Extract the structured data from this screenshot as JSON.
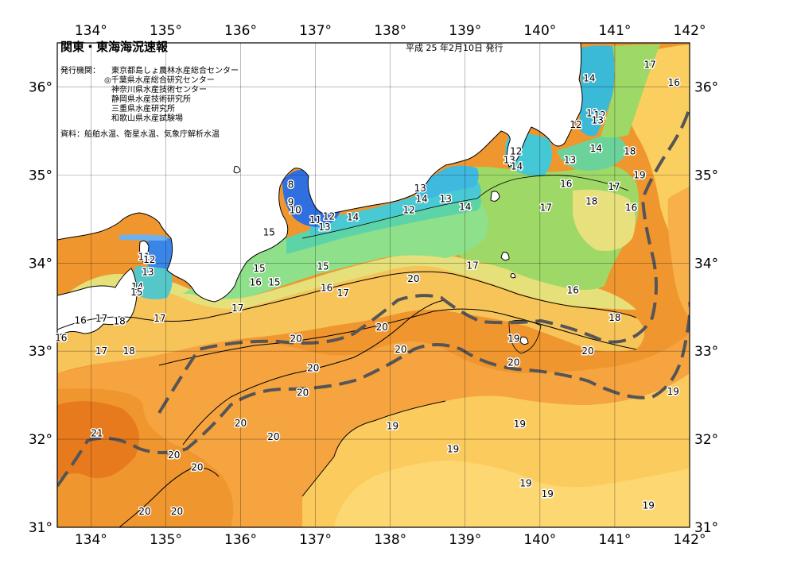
{
  "title": "関東・東海海況速報",
  "issue_date": "平成 25 年2月10日 発行",
  "agencies_label": "発行機関：",
  "agencies": [
    "東京都島しょ農林水産総合センター",
    "◎千葉県水産総合研究センター",
    "神奈川県水産技術センター",
    "静岡県水産技術研究所",
    "三重県水産研究所",
    "和歌山県水産試験場"
  ],
  "sources": "資料：船舶水温、衛星水温、気象庁解析水温",
  "lon_ticks": [
    "134°",
    "135°",
    "136°",
    "137°",
    "138°",
    "139°",
    "140°",
    "141°",
    "142°"
  ],
  "lat_ticks": [
    "36°",
    "35°",
    "34°",
    "33°",
    "32°",
    "31°"
  ],
  "temperature_labels": [
    {
      "text": "17",
      "lon": 141.47,
      "lat": 36.25
    },
    {
      "text": "16",
      "lon": 141.79,
      "lat": 36.05
    },
    {
      "text": "14",
      "lon": 140.66,
      "lat": 36.1
    },
    {
      "text": "11",
      "lon": 140.7,
      "lat": 35.7
    },
    {
      "text": "12",
      "lon": 140.8,
      "lat": 35.68
    },
    {
      "text": "13",
      "lon": 140.77,
      "lat": 35.62
    },
    {
      "text": "12",
      "lon": 140.48,
      "lat": 35.57
    },
    {
      "text": "14",
      "lon": 140.75,
      "lat": 35.3
    },
    {
      "text": "18",
      "lon": 141.2,
      "lat": 35.27
    },
    {
      "text": "13",
      "lon": 140.4,
      "lat": 35.17
    },
    {
      "text": "12",
      "lon": 139.68,
      "lat": 35.27
    },
    {
      "text": "13",
      "lon": 139.59,
      "lat": 35.17
    },
    {
      "text": "14",
      "lon": 139.69,
      "lat": 35.1
    },
    {
      "text": "19",
      "lon": 141.33,
      "lat": 35.0
    },
    {
      "text": "16",
      "lon": 140.35,
      "lat": 34.9
    },
    {
      "text": "17",
      "lon": 140.99,
      "lat": 34.87
    },
    {
      "text": "18",
      "lon": 140.69,
      "lat": 34.7
    },
    {
      "text": "16",
      "lon": 141.22,
      "lat": 34.63
    },
    {
      "text": "17",
      "lon": 140.08,
      "lat": 34.63
    },
    {
      "text": "13",
      "lon": 138.4,
      "lat": 34.85
    },
    {
      "text": "14",
      "lon": 138.42,
      "lat": 34.73
    },
    {
      "text": "13",
      "lon": 138.74,
      "lat": 34.73
    },
    {
      "text": "14",
      "lon": 139.0,
      "lat": 34.64
    },
    {
      "text": "12",
      "lon": 138.25,
      "lat": 34.6
    },
    {
      "text": "8",
      "lon": 136.67,
      "lat": 34.89
    },
    {
      "text": "9",
      "lon": 136.67,
      "lat": 34.69
    },
    {
      "text": "10",
      "lon": 136.73,
      "lat": 34.6
    },
    {
      "text": "11",
      "lon": 137.0,
      "lat": 34.49
    },
    {
      "text": "12",
      "lon": 137.18,
      "lat": 34.53
    },
    {
      "text": "13",
      "lon": 137.12,
      "lat": 34.41
    },
    {
      "text": "14",
      "lon": 137.5,
      "lat": 34.52
    },
    {
      "text": "15",
      "lon": 136.38,
      "lat": 34.35
    },
    {
      "text": "11",
      "lon": 134.71,
      "lat": 34.07
    },
    {
      "text": "12",
      "lon": 134.78,
      "lat": 34.04
    },
    {
      "text": "13",
      "lon": 134.76,
      "lat": 33.9
    },
    {
      "text": "14",
      "lon": 134.62,
      "lat": 33.73
    },
    {
      "text": "15",
      "lon": 134.61,
      "lat": 33.67
    },
    {
      "text": "15",
      "lon": 136.25,
      "lat": 33.94
    },
    {
      "text": "16",
      "lon": 136.2,
      "lat": 33.78
    },
    {
      "text": "15",
      "lon": 136.45,
      "lat": 33.78
    },
    {
      "text": "15",
      "lon": 137.1,
      "lat": 33.96
    },
    {
      "text": "16",
      "lon": 137.15,
      "lat": 33.72
    },
    {
      "text": "17",
      "lon": 137.37,
      "lat": 33.66
    },
    {
      "text": "17",
      "lon": 139.1,
      "lat": 33.97
    },
    {
      "text": "20",
      "lon": 138.31,
      "lat": 33.82
    },
    {
      "text": "16",
      "lon": 140.44,
      "lat": 33.69
    },
    {
      "text": "17",
      "lon": 135.96,
      "lat": 33.49
    },
    {
      "text": "16",
      "lon": 133.86,
      "lat": 33.35
    },
    {
      "text": "17",
      "lon": 134.14,
      "lat": 33.37
    },
    {
      "text": "18",
      "lon": 134.38,
      "lat": 33.34
    },
    {
      "text": "17",
      "lon": 134.92,
      "lat": 33.37
    },
    {
      "text": "16",
      "lon": 133.6,
      "lat": 33.15
    },
    {
      "text": "20",
      "lon": 137.89,
      "lat": 33.27
    },
    {
      "text": "18",
      "lon": 141.0,
      "lat": 33.38
    },
    {
      "text": "17",
      "lon": 134.14,
      "lat": 33.0
    },
    {
      "text": "18",
      "lon": 134.51,
      "lat": 33.0
    },
    {
      "text": "20",
      "lon": 136.74,
      "lat": 33.14
    },
    {
      "text": "19",
      "lon": 139.65,
      "lat": 33.14
    },
    {
      "text": "20",
      "lon": 138.14,
      "lat": 33.02
    },
    {
      "text": "20",
      "lon": 140.64,
      "lat": 33.0
    },
    {
      "text": "20",
      "lon": 136.97,
      "lat": 32.81
    },
    {
      "text": "20",
      "lon": 139.65,
      "lat": 32.87
    },
    {
      "text": "20",
      "lon": 136.83,
      "lat": 32.53
    },
    {
      "text": "19",
      "lon": 141.78,
      "lat": 32.54
    },
    {
      "text": "20",
      "lon": 136.0,
      "lat": 32.18
    },
    {
      "text": "19",
      "lon": 138.03,
      "lat": 32.15
    },
    {
      "text": "19",
      "lon": 139.73,
      "lat": 32.17
    },
    {
      "text": "20",
      "lon": 136.44,
      "lat": 32.03
    },
    {
      "text": "21",
      "lon": 134.08,
      "lat": 32.07
    },
    {
      "text": "19",
      "lon": 138.84,
      "lat": 31.89
    },
    {
      "text": "20",
      "lon": 135.11,
      "lat": 31.82
    },
    {
      "text": "20",
      "lon": 135.42,
      "lat": 31.68
    },
    {
      "text": "19",
      "lon": 139.81,
      "lat": 31.5
    },
    {
      "text": "19",
      "lon": 140.1,
      "lat": 31.38
    },
    {
      "text": "19",
      "lon": 141.45,
      "lat": 31.25
    },
    {
      "text": "20",
      "lon": 134.72,
      "lat": 31.18
    },
    {
      "text": "20",
      "lon": 135.15,
      "lat": 31.18
    }
  ]
}
